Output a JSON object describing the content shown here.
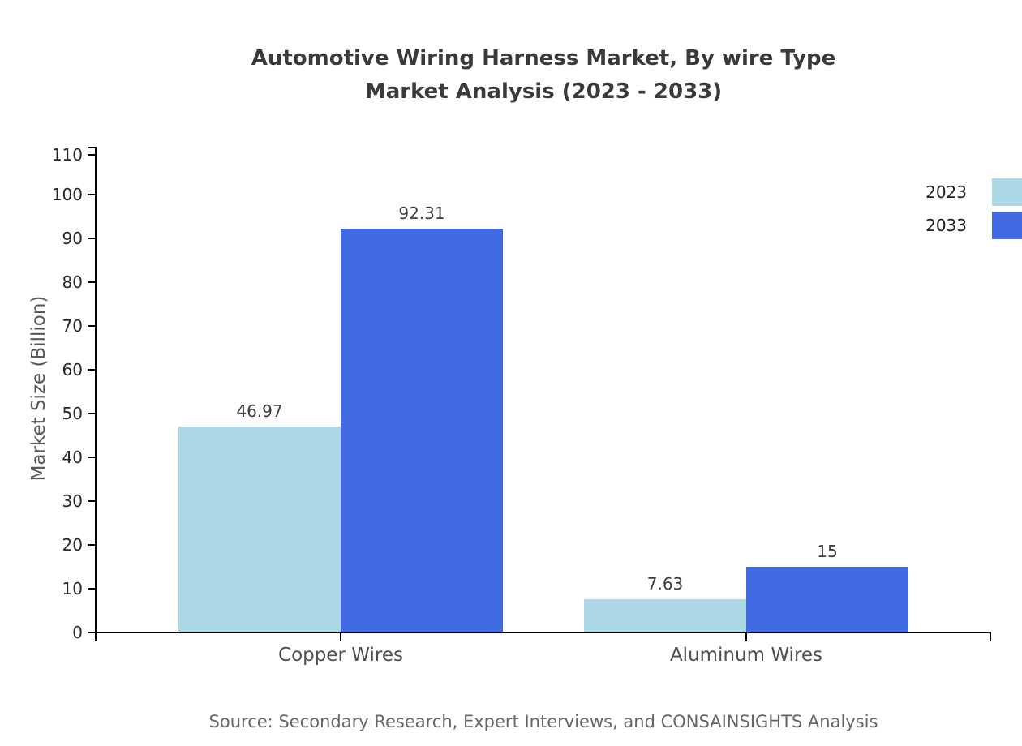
{
  "title": {
    "line1": "Automotive Wiring Harness Market, By wire Type",
    "line2": "Market Analysis (2023 - 2033)"
  },
  "y_axis_label": "Market Size (Billion)",
  "source_note": "Source: Secondary Research, Expert Interviews, and CONSAINSIGHTS Analysis",
  "legend": {
    "position": "top-right-outside",
    "items": [
      "2023",
      "2033"
    ]
  },
  "colors": {
    "series_2023": "#ADD8E6",
    "series_2033": "#4169E1",
    "title_text": "#3a3a3a",
    "tick_text": "#262626",
    "category_text": "#4f4f4f",
    "value_label_text": "#3d3d3d",
    "axis_label_text": "#595959",
    "source_text": "#666666",
    "axis_line": "#000000",
    "background": "#ffffff"
  },
  "chart_data": {
    "type": "bar",
    "title": "Automotive Wiring Harness Market, By wire Type Market Analysis (2023 - 2033)",
    "categories": [
      "Copper Wires",
      "Aluminum Wires"
    ],
    "series": [
      {
        "name": "2023",
        "color": "#ADD8E6",
        "values": [
          46.97,
          7.63
        ]
      },
      {
        "name": "2033",
        "color": "#4169E1",
        "values": [
          92.31,
          15
        ]
      }
    ],
    "value_labels": [
      [
        "46.97",
        "7.63"
      ],
      [
        "92.31",
        "15"
      ]
    ],
    "xlabel": "",
    "ylabel": "Market Size (Billion)",
    "ylim": [
      0,
      110
    ],
    "yticks": [
      0,
      10,
      20,
      30,
      40,
      50,
      60,
      70,
      80,
      90,
      100,
      110
    ],
    "grid": false,
    "legend_position": "top-right-outside"
  }
}
